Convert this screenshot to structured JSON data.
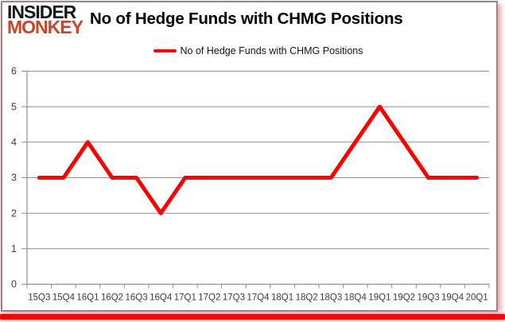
{
  "logo": {
    "line1": "INSIDER",
    "line2": "MONKEY"
  },
  "header": {
    "title": "No of Hedge Funds with CHMG Positions"
  },
  "legend": {
    "label": "No of Hedge Funds with CHMG Positions"
  },
  "chart_data": {
    "type": "line",
    "title": "No of Hedge Funds with CHMG Positions",
    "categories": [
      "15Q3",
      "15Q4",
      "16Q1",
      "16Q2",
      "16Q3",
      "16Q4",
      "17Q1",
      "17Q2",
      "17Q3",
      "17Q4",
      "18Q1",
      "18Q2",
      "18Q3",
      "18Q4",
      "19Q1",
      "19Q2",
      "19Q3",
      "19Q4",
      "20Q1"
    ],
    "series": [
      {
        "name": "No of Hedge Funds with CHMG Positions",
        "color": "#ff0000",
        "values": [
          3,
          3,
          4,
          3,
          3,
          2,
          3,
          3,
          3,
          3,
          3,
          3,
          3,
          4,
          5,
          4,
          3,
          3,
          3
        ]
      }
    ],
    "xlabel": "",
    "ylabel": "",
    "ylim": [
      0,
      6
    ],
    "yticks": [
      0,
      1,
      2,
      3,
      4,
      5,
      6
    ],
    "grid": true,
    "legend_position": "top-center"
  },
  "colors": {
    "series_red": "#ff0000",
    "logo_black": "#171717",
    "logo_red": "#c9452a",
    "grid_gray": "#8f8f8f",
    "axis_text": "#3c3c3c",
    "frame_border": "#8a8a8a",
    "bottom_bar_red": "#ff0000"
  }
}
